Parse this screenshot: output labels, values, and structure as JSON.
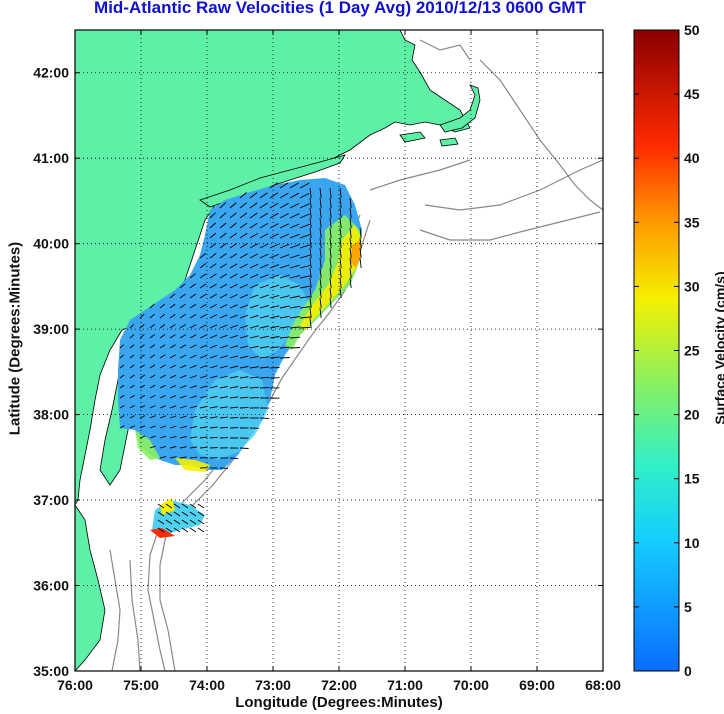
{
  "title": "Mid-Atlantic Raw Velocities (1 Day Avg) 2010/12/13 0600 GMT",
  "xlabel": "Longitude (Degrees:Minutes)",
  "ylabel": "Latitude (Degrees:Minutes)",
  "colorbar_label": "Surface Velocity (cm/s)",
  "colors": {
    "land": "#5ff0a8",
    "coast": "#888888",
    "frame": "#000000"
  },
  "chart_data": {
    "type": "map",
    "x_ticks": [
      "76:00",
      "75:00",
      "74:00",
      "73:00",
      "72:00",
      "71:00",
      "70:00",
      "69:00",
      "68:00"
    ],
    "y_ticks": [
      "42:00",
      "41:00",
      "40:00",
      "39:00",
      "38:00",
      "37:00",
      "36:00",
      "35:00"
    ],
    "xlim": [
      -76,
      -68
    ],
    "ylim": [
      35,
      42.5
    ],
    "colorbar": {
      "min": 0,
      "max": 50,
      "ticks": [
        "50",
        "45",
        "40",
        "35",
        "30",
        "25",
        "20",
        "15",
        "10",
        "5",
        "0"
      ]
    },
    "grid": true
  }
}
